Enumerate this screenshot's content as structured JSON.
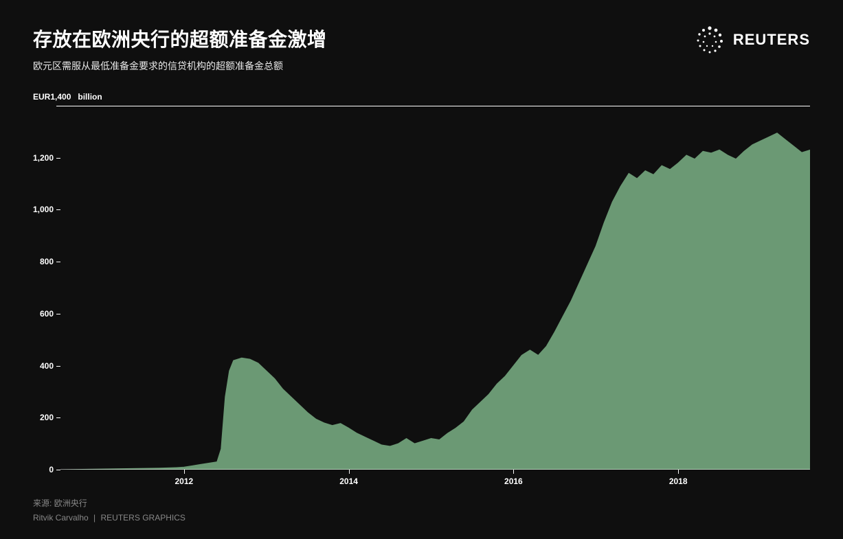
{
  "header": {
    "title": "存放在欧洲央行的超额准备金激增",
    "subtitle": "欧元区需服从最低准备金要求的信贷机构的超额准备金总额",
    "brand": "REUTERS"
  },
  "chart": {
    "type": "area",
    "y_unit_prefix": "EUR",
    "y_unit_suffix": "billion",
    "background_color": "#0f0f0f",
    "area_fill": "#6b9974",
    "area_stroke": "#6b9974",
    "axis_color": "#ffffff",
    "text_color": "#ffffff",
    "ylim": [
      0,
      1400
    ],
    "yticks": [
      0,
      200,
      400,
      600,
      800,
      1000,
      1200,
      1400
    ],
    "ytick_labels": [
      "0",
      "200",
      "400",
      "600",
      "800",
      "1,000",
      "1,200",
      "1,400"
    ],
    "xlim": [
      2010.5,
      2019.6
    ],
    "xticks": [
      2012,
      2014,
      2016,
      2018
    ],
    "xtick_labels": [
      "2012",
      "2014",
      "2016",
      "2018"
    ],
    "title_fontsize": 28,
    "subtitle_fontsize": 14,
    "tick_fontsize": 12,
    "series": {
      "points": [
        [
          2010.5,
          0
        ],
        [
          2010.7,
          1
        ],
        [
          2010.9,
          2
        ],
        [
          2011.1,
          3
        ],
        [
          2011.3,
          4
        ],
        [
          2011.5,
          5
        ],
        [
          2011.7,
          6
        ],
        [
          2011.9,
          8
        ],
        [
          2012.0,
          10
        ],
        [
          2012.1,
          15
        ],
        [
          2012.2,
          20
        ],
        [
          2012.3,
          25
        ],
        [
          2012.4,
          30
        ],
        [
          2012.45,
          80
        ],
        [
          2012.5,
          280
        ],
        [
          2012.55,
          380
        ],
        [
          2012.6,
          420
        ],
        [
          2012.7,
          430
        ],
        [
          2012.8,
          425
        ],
        [
          2012.9,
          410
        ],
        [
          2013.0,
          380
        ],
        [
          2013.1,
          350
        ],
        [
          2013.2,
          310
        ],
        [
          2013.3,
          280
        ],
        [
          2013.4,
          250
        ],
        [
          2013.5,
          220
        ],
        [
          2013.6,
          195
        ],
        [
          2013.7,
          180
        ],
        [
          2013.8,
          170
        ],
        [
          2013.9,
          178
        ],
        [
          2014.0,
          160
        ],
        [
          2014.1,
          140
        ],
        [
          2014.2,
          125
        ],
        [
          2014.3,
          110
        ],
        [
          2014.4,
          95
        ],
        [
          2014.5,
          90
        ],
        [
          2014.6,
          100
        ],
        [
          2014.7,
          120
        ],
        [
          2014.8,
          100
        ],
        [
          2014.9,
          110
        ],
        [
          2015.0,
          120
        ],
        [
          2015.1,
          115
        ],
        [
          2015.2,
          140
        ],
        [
          2015.3,
          160
        ],
        [
          2015.4,
          185
        ],
        [
          2015.5,
          230
        ],
        [
          2015.6,
          260
        ],
        [
          2015.7,
          290
        ],
        [
          2015.8,
          330
        ],
        [
          2015.9,
          360
        ],
        [
          2016.0,
          400
        ],
        [
          2016.1,
          440
        ],
        [
          2016.2,
          460
        ],
        [
          2016.3,
          440
        ],
        [
          2016.4,
          475
        ],
        [
          2016.5,
          530
        ],
        [
          2016.6,
          590
        ],
        [
          2016.7,
          650
        ],
        [
          2016.8,
          720
        ],
        [
          2016.9,
          790
        ],
        [
          2017.0,
          860
        ],
        [
          2017.1,
          950
        ],
        [
          2017.2,
          1030
        ],
        [
          2017.3,
          1090
        ],
        [
          2017.4,
          1140
        ],
        [
          2017.5,
          1120
        ],
        [
          2017.6,
          1150
        ],
        [
          2017.7,
          1135
        ],
        [
          2017.8,
          1170
        ],
        [
          2017.9,
          1155
        ],
        [
          2018.0,
          1180
        ],
        [
          2018.1,
          1210
        ],
        [
          2018.2,
          1195
        ],
        [
          2018.3,
          1225
        ],
        [
          2018.4,
          1218
        ],
        [
          2018.5,
          1230
        ],
        [
          2018.6,
          1210
        ],
        [
          2018.7,
          1195
        ],
        [
          2018.8,
          1225
        ],
        [
          2018.9,
          1250
        ],
        [
          2019.0,
          1265
        ],
        [
          2019.1,
          1280
        ],
        [
          2019.2,
          1295
        ],
        [
          2019.3,
          1270
        ],
        [
          2019.4,
          1245
        ],
        [
          2019.5,
          1220
        ],
        [
          2019.6,
          1230
        ]
      ]
    }
  },
  "footer": {
    "source_label": "来源:",
    "source_value": "欧洲央行",
    "byline_author": "Ritvik Carvalho",
    "byline_org": "REUTERS GRAPHICS"
  }
}
